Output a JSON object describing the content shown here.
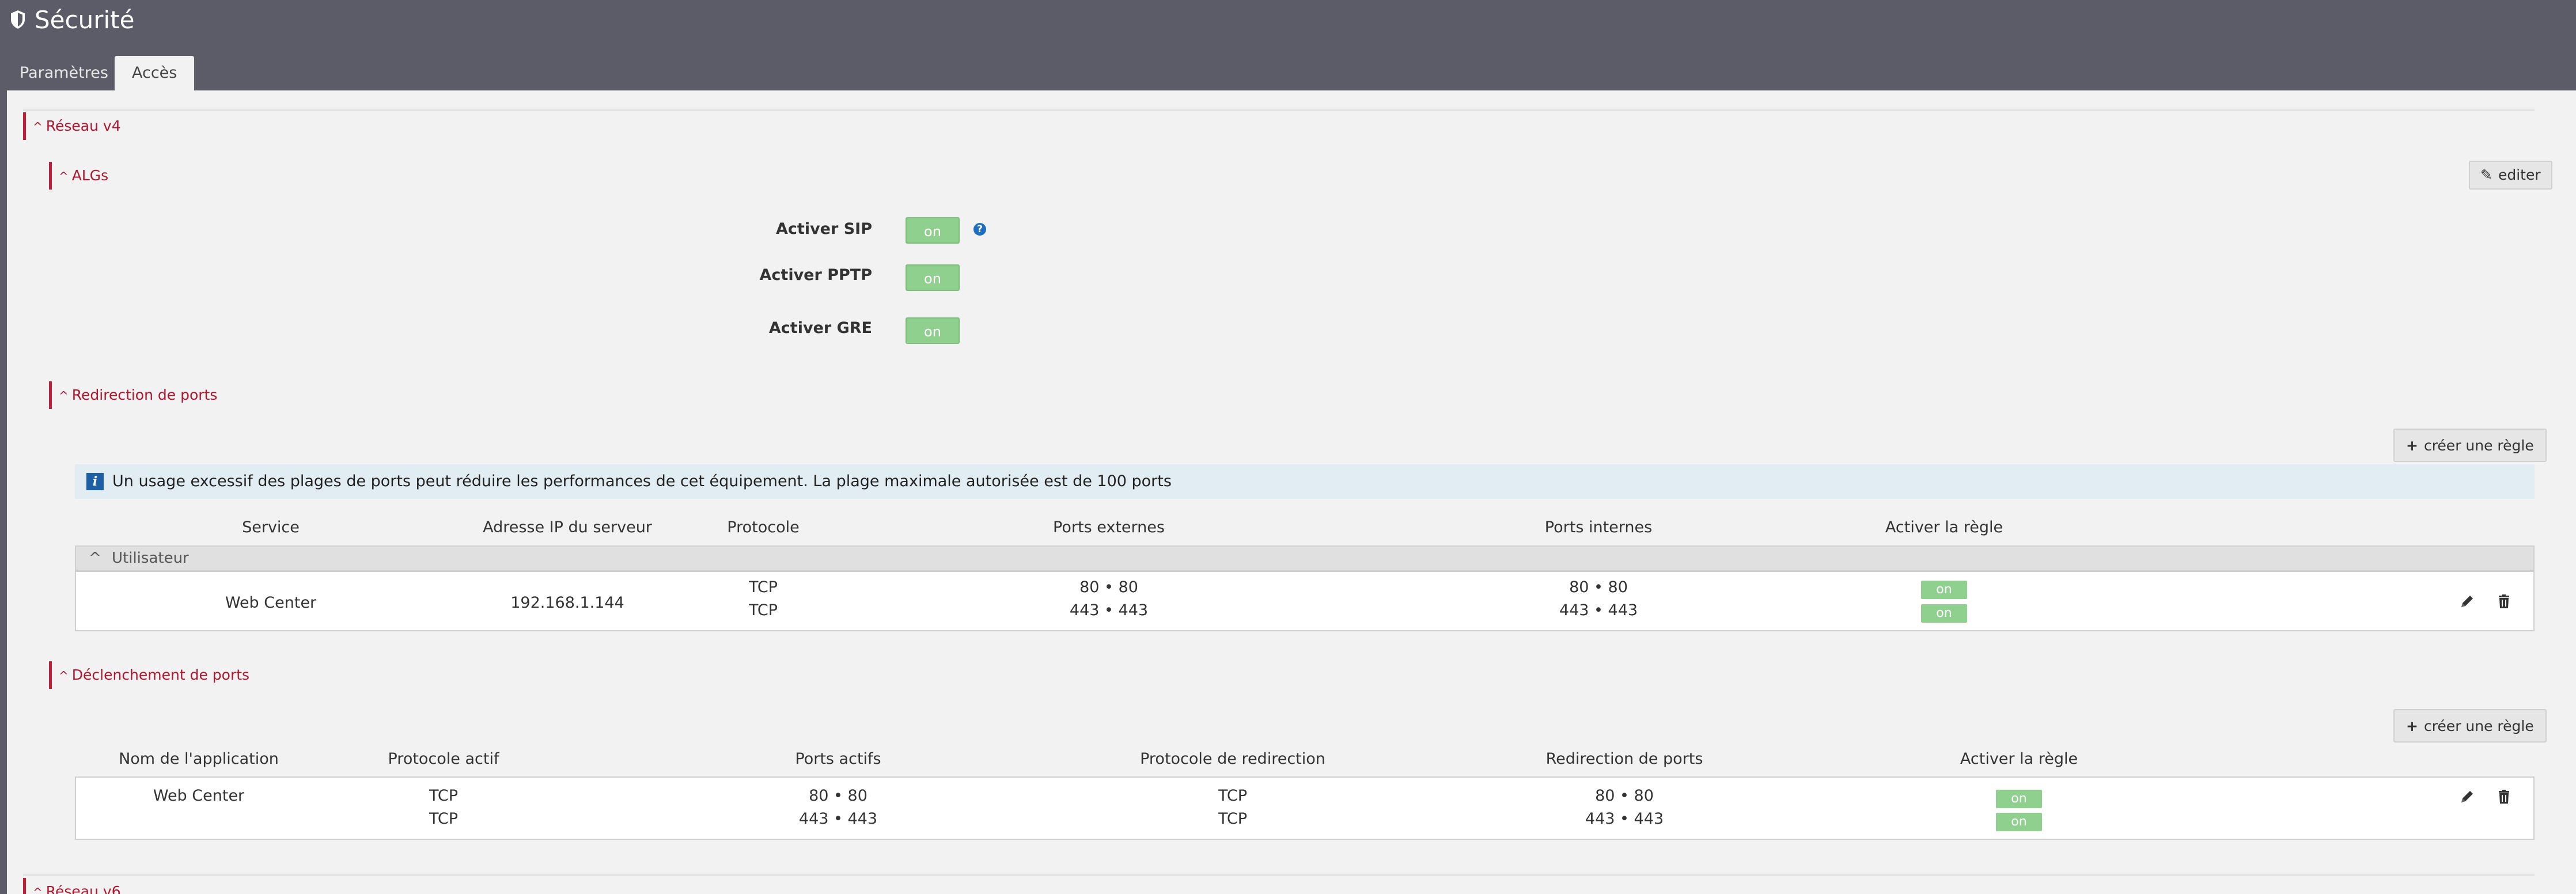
{
  "header": {
    "title": "Sécurité",
    "icon": "shield-icon"
  },
  "tabs": [
    {
      "label": "Paramètres",
      "active": false
    },
    {
      "label": "Accès",
      "active": true
    }
  ],
  "reseau_v4": {
    "label": "Réseau v4"
  },
  "algs": {
    "label": "ALGs",
    "edit_label": "editer",
    "rows": [
      {
        "label": "Activer SIP",
        "value": "on"
      },
      {
        "label": "Activer PPTP",
        "value": "on"
      },
      {
        "label": "Activer GRE",
        "value": "on"
      }
    ]
  },
  "port_redirect": {
    "label": "Redirection de ports",
    "create_label": "créer une règle",
    "info": "Un usage excessif des plages de ports peut réduire les performances de cet équipement. La plage maximale autorisée est de 100 ports",
    "columns": [
      "Service",
      "Adresse IP du serveur",
      "Protocole",
      "Ports externes",
      "Ports internes",
      "Activer la règle"
    ],
    "group": "Utilisateur",
    "row": {
      "service": "Web Center",
      "ip": "192.168.1.144",
      "protocols": [
        "TCP",
        "TCP"
      ],
      "external": [
        "80 • 80",
        "443 • 443"
      ],
      "internal": [
        "80 • 80",
        "443 • 443"
      ],
      "enabled": [
        "on",
        "on"
      ]
    }
  },
  "port_trigger": {
    "label": "Déclenchement de ports",
    "create_label": "créer une règle",
    "columns": [
      "Nom de l'application",
      "Protocole actif",
      "Ports actifs",
      "Protocole de redirection",
      "Redirection de ports",
      "Activer la règle"
    ],
    "row": {
      "app": "Web Center",
      "active_protocols": [
        "TCP",
        "TCP"
      ],
      "active_ports": [
        "80 • 80",
        "443 • 443"
      ],
      "redirect_protocols": [
        "TCP",
        "TCP"
      ],
      "redirect_ports": [
        "80 • 80",
        "443 • 443"
      ],
      "enabled": [
        "on",
        "on"
      ]
    }
  },
  "reseau_v6": {
    "label": "Réseau v6"
  },
  "colors": {
    "accent": "#c21f39",
    "header": "#5c5c68",
    "toggle_on": "#8fd08f"
  }
}
